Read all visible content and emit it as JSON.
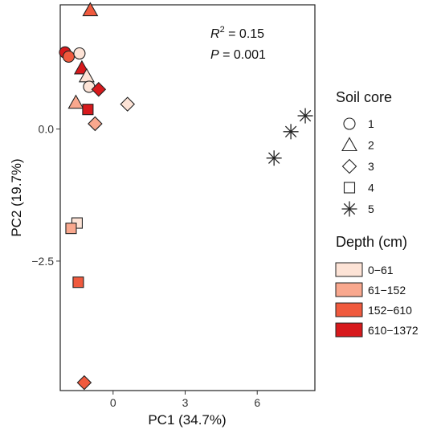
{
  "chart_data": {
    "type": "scatter",
    "xlabel": "PC1 (34.7%)",
    "ylabel": "PC2 (19.7%)",
    "xlim": [
      -2.2,
      8.4
    ],
    "ylim": [
      -4.95,
      2.35
    ],
    "x_ticks": [
      0,
      3,
      6
    ],
    "y_ticks": [
      0.0,
      -2.5
    ],
    "x_tick_labels": [
      "0",
      "3",
      "6"
    ],
    "y_tick_labels": [
      "0.0",
      "−2.5"
    ],
    "grid": false,
    "annotations": {
      "r2_symbol": "R",
      "r2_sup": "2",
      "r2_value": " = 0.15",
      "p_symbol": "P",
      "p_value": " = 0.001"
    },
    "legend_shape": {
      "title": "Soil core",
      "entries": [
        {
          "label": "1",
          "shape": "circle"
        },
        {
          "label": "2",
          "shape": "triangle"
        },
        {
          "label": "3",
          "shape": "diamond"
        },
        {
          "label": "4",
          "shape": "square"
        },
        {
          "label": "5",
          "shape": "asterisk"
        }
      ]
    },
    "legend_depth": {
      "title": "Depth (cm)",
      "entries": [
        {
          "label": "0−61",
          "color": "#fde3d6"
        },
        {
          "label": "61−152",
          "color": "#f9a88e"
        },
        {
          "label": "152−610",
          "color": "#f05a3e"
        },
        {
          "label": "610−1372",
          "color": "#d7191c"
        }
      ]
    },
    "points": [
      {
        "core": "2",
        "depth": "152−610",
        "x": -0.95,
        "y": 2.25
      },
      {
        "core": "1",
        "depth": "610−1372",
        "x": -2.0,
        "y": 1.45
      },
      {
        "core": "1",
        "depth": "152−610",
        "x": -1.85,
        "y": 1.37
      },
      {
        "core": "1",
        "depth": "0−61",
        "x": -1.4,
        "y": 1.43
      },
      {
        "core": "2",
        "depth": "610−1372",
        "x": -1.3,
        "y": 1.15
      },
      {
        "core": "2",
        "depth": "0−61",
        "x": -1.1,
        "y": 1.0
      },
      {
        "core": "1",
        "depth": "0−61",
        "x": -1.0,
        "y": 0.8
      },
      {
        "core": "3",
        "depth": "610−1372",
        "x": -0.6,
        "y": 0.75
      },
      {
        "core": "2",
        "depth": "61−152",
        "x": -1.55,
        "y": 0.5
      },
      {
        "core": "3",
        "depth": "0−61",
        "x": 0.6,
        "y": 0.47
      },
      {
        "core": "4",
        "depth": "610−1372",
        "x": -1.05,
        "y": 0.37
      },
      {
        "core": "3",
        "depth": "61−152",
        "x": -0.75,
        "y": 0.1
      },
      {
        "core": "5",
        "depth": "0−61",
        "x": 8.0,
        "y": 0.25
      },
      {
        "core": "5",
        "depth": "0−61",
        "x": 7.4,
        "y": -0.05
      },
      {
        "core": "5",
        "depth": "0−61",
        "x": 6.7,
        "y": -0.55
      },
      {
        "core": "4",
        "depth": "0−61",
        "x": -1.5,
        "y": -1.78
      },
      {
        "core": "4",
        "depth": "61−152",
        "x": -1.75,
        "y": -1.88
      },
      {
        "core": "4",
        "depth": "152−610",
        "x": -1.45,
        "y": -2.9
      },
      {
        "core": "3",
        "depth": "152−610",
        "x": -1.2,
        "y": -4.8
      }
    ]
  }
}
